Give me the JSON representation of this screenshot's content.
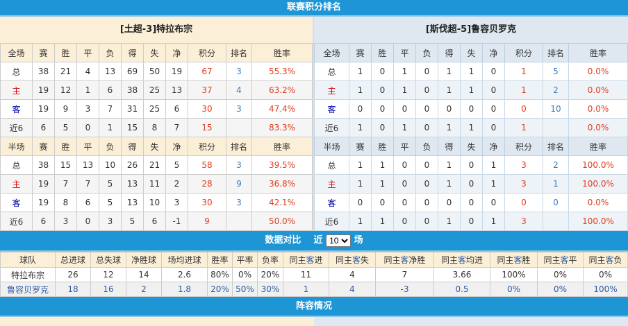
{
  "title": "联赛积分排名",
  "home": {
    "name": "[土超-3]特拉布宗",
    "full_header": [
      "全场",
      "赛",
      "胜",
      "平",
      "负",
      "得",
      "失",
      "净",
      "积分",
      "排名",
      "胜率"
    ],
    "full_rows": [
      [
        "总",
        "38",
        "21",
        "4",
        "13",
        "69",
        "50",
        "19",
        "67",
        "3",
        "55.3%"
      ],
      [
        "主",
        "19",
        "12",
        "1",
        "6",
        "38",
        "25",
        "13",
        "37",
        "4",
        "63.2%"
      ],
      [
        "客",
        "19",
        "9",
        "3",
        "7",
        "31",
        "25",
        "6",
        "30",
        "3",
        "47.4%"
      ],
      [
        "近6",
        "6",
        "5",
        "0",
        "1",
        "15",
        "8",
        "7",
        "15",
        "",
        "83.3%"
      ]
    ],
    "half_header": [
      "半场",
      "赛",
      "胜",
      "平",
      "负",
      "得",
      "失",
      "净",
      "积分",
      "排名",
      "胜率"
    ],
    "half_rows": [
      [
        "总",
        "38",
        "15",
        "13",
        "10",
        "26",
        "21",
        "5",
        "58",
        "3",
        "39.5%"
      ],
      [
        "主",
        "19",
        "7",
        "7",
        "5",
        "13",
        "11",
        "2",
        "28",
        "9",
        "36.8%"
      ],
      [
        "客",
        "19",
        "8",
        "6",
        "5",
        "13",
        "10",
        "3",
        "30",
        "3",
        "42.1%"
      ],
      [
        "近6",
        "6",
        "3",
        "0",
        "3",
        "5",
        "6",
        "-1",
        "9",
        "",
        "50.0%"
      ]
    ]
  },
  "away": {
    "name": "[斯伐超-5]鲁容贝罗克",
    "full_header": [
      "全场",
      "赛",
      "胜",
      "平",
      "负",
      "得",
      "失",
      "净",
      "积分",
      "排名",
      "胜率"
    ],
    "full_rows": [
      [
        "总",
        "1",
        "0",
        "1",
        "0",
        "1",
        "1",
        "0",
        "1",
        "5",
        "0.0%"
      ],
      [
        "主",
        "1",
        "0",
        "1",
        "0",
        "1",
        "1",
        "0",
        "1",
        "2",
        "0.0%"
      ],
      [
        "客",
        "0",
        "0",
        "0",
        "0",
        "0",
        "0",
        "0",
        "0",
        "10",
        "0.0%"
      ],
      [
        "近6",
        "1",
        "0",
        "1",
        "0",
        "1",
        "1",
        "0",
        "1",
        "",
        "0.0%"
      ]
    ],
    "half_header": [
      "半场",
      "赛",
      "胜",
      "平",
      "负",
      "得",
      "失",
      "净",
      "积分",
      "排名",
      "胜率"
    ],
    "half_rows": [
      [
        "总",
        "1",
        "1",
        "0",
        "0",
        "1",
        "0",
        "1",
        "3",
        "2",
        "100.0%"
      ],
      [
        "主",
        "1",
        "1",
        "0",
        "0",
        "1",
        "0",
        "1",
        "3",
        "1",
        "100.0%"
      ],
      [
        "客",
        "0",
        "0",
        "0",
        "0",
        "0",
        "0",
        "0",
        "0",
        "0",
        "0.0%"
      ],
      [
        "近6",
        "1",
        "1",
        "0",
        "0",
        "1",
        "0",
        "1",
        "3",
        "",
        "100.0%"
      ]
    ]
  },
  "compare": {
    "title": "数据对比",
    "near": "近",
    "count": "10",
    "unit": "场",
    "header": [
      [
        "球队"
      ],
      [
        "总进球"
      ],
      [
        "总失球"
      ],
      [
        "净胜球"
      ],
      [
        "场均进球"
      ],
      [
        "胜率"
      ],
      [
        "平率"
      ],
      [
        "负率"
      ],
      [
        "同主",
        "客",
        "进"
      ],
      [
        "同主",
        "客",
        "失"
      ],
      [
        "同主",
        "客",
        "净胜"
      ],
      [
        "同主",
        "客",
        "均进"
      ],
      [
        "同主",
        "客",
        "胜"
      ],
      [
        "同主",
        "客",
        "平"
      ],
      [
        "同主",
        "客",
        "负"
      ]
    ],
    "rows": [
      [
        "特拉布宗",
        "26",
        "12",
        "14",
        "2.6",
        "80%",
        "0%",
        "20%",
        "11",
        "4",
        "7",
        "3.66",
        "100%",
        "0%",
        "0%"
      ],
      [
        "鲁容贝罗克",
        "18",
        "16",
        "2",
        "1.8",
        "20%",
        "50%",
        "30%",
        "1",
        "4",
        "-3",
        "0.5",
        "0%",
        "0%",
        "100%"
      ]
    ]
  },
  "lineup_title": "阵容情况"
}
